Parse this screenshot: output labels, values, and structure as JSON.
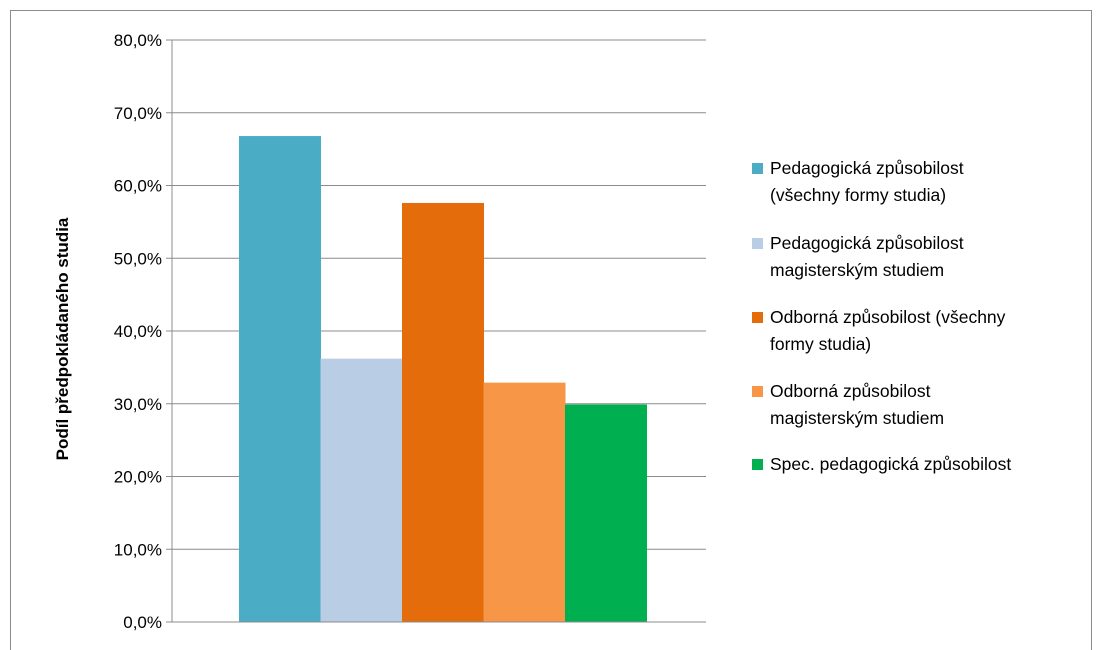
{
  "chart_data": {
    "type": "bar",
    "title": "",
    "xlabel": "",
    "ylabel": "Podíl předpokládaného studia",
    "ylim": [
      0,
      80
    ],
    "yticks": [
      "0,0%",
      "10,0%",
      "20,0%",
      "30,0%",
      "40,0%",
      "50,0%",
      "60,0%",
      "70,0%",
      "80,0%"
    ],
    "grid": true,
    "legend_position": "right",
    "series": [
      {
        "name": "Pedagogická způsobilost (všechny formy studia)",
        "legend_lines": [
          "Pedagogická způsobilost",
          "(všechny formy studia)"
        ],
        "value": 66.8,
        "color": "#4BACC6"
      },
      {
        "name": "Pedagogická způsobilost magisterským studiem",
        "legend_lines": [
          "Pedagogická způsobilost",
          "magisterským studiem"
        ],
        "value": 36.2,
        "color": "#B9CDE5"
      },
      {
        "name": "Odborná způsobilost (všechny formy studia)",
        "legend_lines": [
          "Odborná způsobilost (všechny",
          "formy studia)"
        ],
        "value": 57.6,
        "color": "#E46C0A"
      },
      {
        "name": "Odborná způsobilost magisterským studiem",
        "legend_lines": [
          "Odborná způsobilost",
          "magisterským studiem"
        ],
        "value": 32.9,
        "color": "#F79646"
      },
      {
        "name": "Spec. pedagogická způsobilost",
        "legend_lines": [
          "Spec. pedagogická způsobilost"
        ],
        "value": 29.9,
        "color": "#00B050"
      }
    ]
  }
}
